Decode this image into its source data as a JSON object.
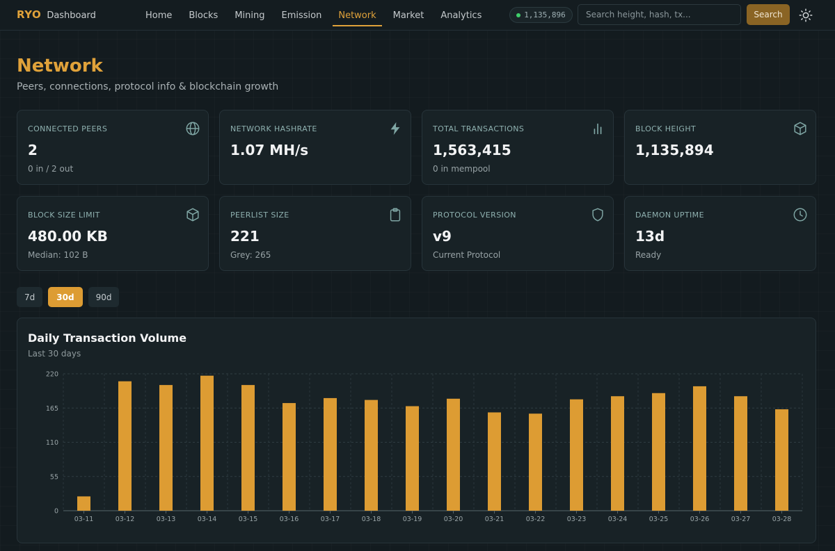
{
  "header": {
    "brand": "RYO",
    "brand_sub": "Dashboard",
    "nav": [
      "Home",
      "Blocks",
      "Mining",
      "Emission",
      "Network",
      "Market",
      "Analytics"
    ],
    "active_nav": "Network",
    "height_pill": "1,135,896",
    "search_placeholder": "Search height, hash, tx...",
    "search_label": "Search",
    "theme_icon": "sun-icon"
  },
  "page": {
    "title": "Network",
    "subtitle": "Peers, connections, protocol info & blockchain growth"
  },
  "cards": [
    {
      "label": "Connected Peers",
      "value": "2",
      "sub": "0 in / 2 out",
      "icon": "globe-icon"
    },
    {
      "label": "Network Hashrate",
      "value": "1.07 MH/s",
      "sub": "",
      "icon": "lightning-icon"
    },
    {
      "label": "Total Transactions",
      "value": "1,563,415",
      "sub": "0 in mempool",
      "icon": "bar-chart-icon"
    },
    {
      "label": "Block Height",
      "value": "1,135,894",
      "sub": "",
      "icon": "cube-icon"
    },
    {
      "label": "Block Size Limit",
      "value": "480.00 KB",
      "sub": "Median: 102 B",
      "icon": "cube-icon"
    },
    {
      "label": "Peerlist Size",
      "value": "221",
      "sub": "Grey: 265",
      "icon": "clipboard-icon"
    },
    {
      "label": "Protocol Version",
      "value": "v9",
      "sub": "Current Protocol",
      "icon": "shield-icon"
    },
    {
      "label": "Daemon Uptime",
      "value": "13d",
      "sub": "Ready",
      "icon": "clock-icon"
    }
  ],
  "range": {
    "options": [
      "7d",
      "30d",
      "90d"
    ],
    "active": "30d"
  },
  "colors": {
    "accent": "#e0a23a",
    "bar": "#dd9c33",
    "icon": "#7fa6a4"
  },
  "chart_data": {
    "type": "bar",
    "title": "Daily Transaction Volume",
    "subtitle": "Last 30 days",
    "categories": [
      "03-11",
      "03-12",
      "03-13",
      "03-14",
      "03-15",
      "03-16",
      "03-17",
      "03-18",
      "03-19",
      "03-20",
      "03-21",
      "03-22",
      "03-23",
      "03-24",
      "03-25",
      "03-26",
      "03-27",
      "03-28"
    ],
    "values": [
      23,
      208,
      202,
      217,
      202,
      173,
      181,
      178,
      168,
      180,
      158,
      156,
      179,
      184,
      189,
      200,
      184,
      163
    ],
    "yticks": [
      0,
      55,
      110,
      165,
      220
    ],
    "ylim": [
      0,
      220
    ],
    "grid": true,
    "legend": "none"
  }
}
